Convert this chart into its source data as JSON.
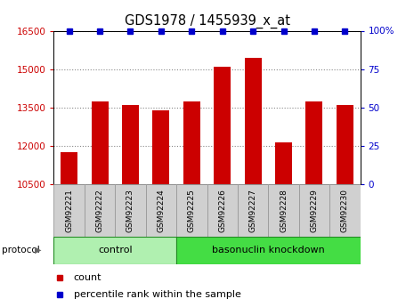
{
  "title": "GDS1978 / 1455939_x_at",
  "samples": [
    "GSM92221",
    "GSM92222",
    "GSM92223",
    "GSM92224",
    "GSM92225",
    "GSM92226",
    "GSM92227",
    "GSM92228",
    "GSM92229",
    "GSM92230"
  ],
  "counts": [
    11750,
    13750,
    13600,
    13400,
    13750,
    15100,
    15450,
    12150,
    13750,
    13600
  ],
  "percentile_ranks": [
    100,
    100,
    100,
    100,
    100,
    100,
    100,
    100,
    100,
    100
  ],
  "bar_color": "#CC0000",
  "dot_color": "#0000CC",
  "ylim_left": [
    10500,
    16500
  ],
  "ylim_right": [
    0,
    100
  ],
  "yticks_left": [
    10500,
    12000,
    13500,
    15000,
    16500
  ],
  "yticks_right": [
    0,
    25,
    50,
    75,
    100
  ],
  "ylabel_left_color": "#CC0000",
  "ylabel_right_color": "#0000CC",
  "control_count": 4,
  "control_color": "#B0F0B0",
  "knockdown_color": "#44DD44",
  "sample_box_color": "#D0D0D0",
  "sample_box_edge": "#999999",
  "protocol_label": "protocol",
  "control_label": "control",
  "knockdown_label": "basonuclin knockdown",
  "legend_count_label": "count",
  "legend_percentile_label": "percentile rank within the sample"
}
